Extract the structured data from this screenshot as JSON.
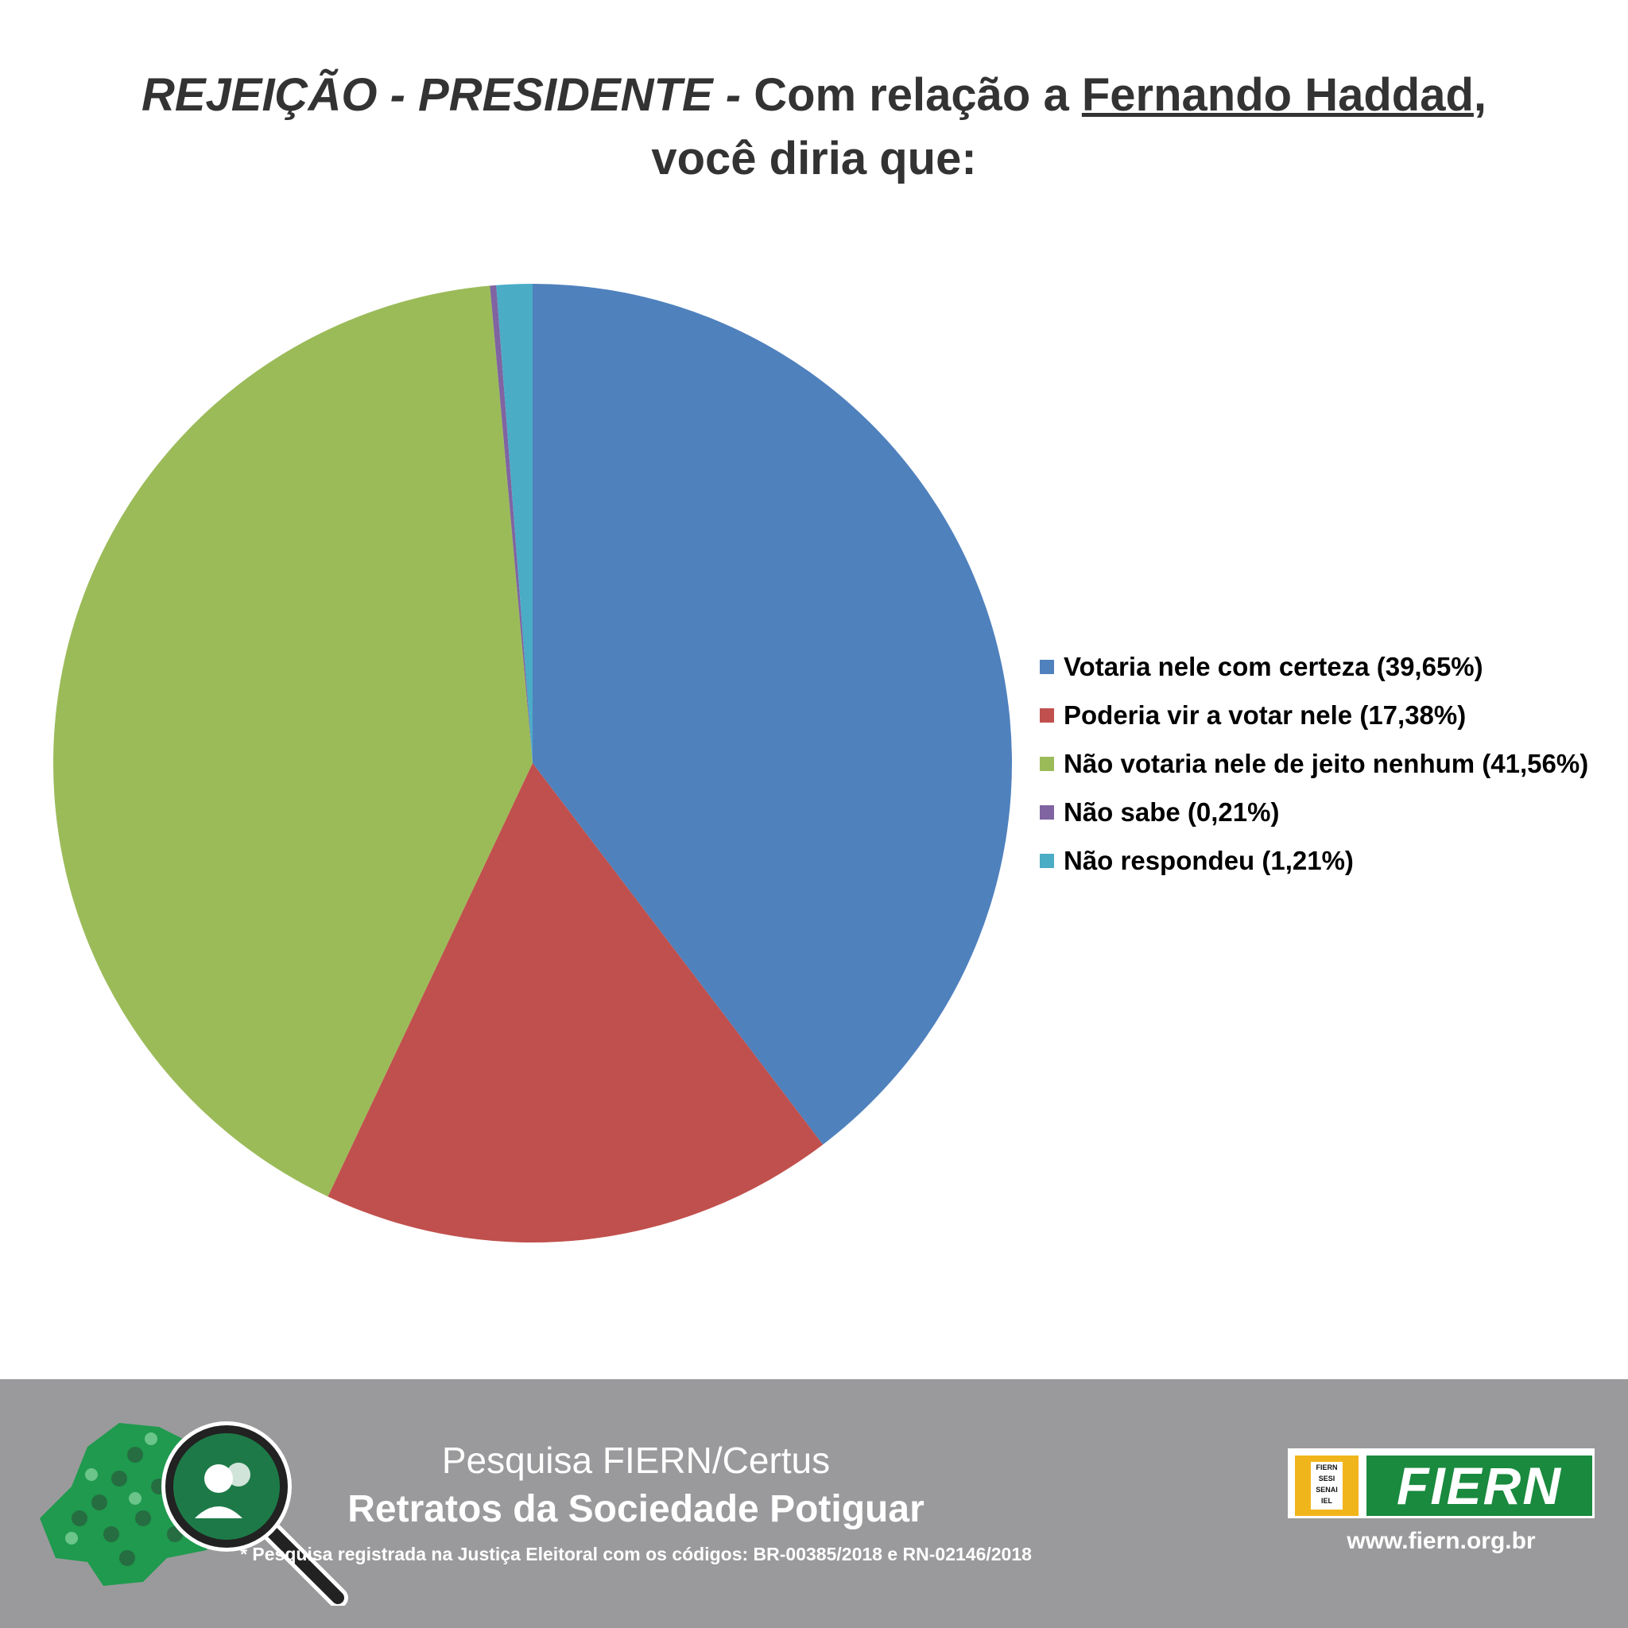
{
  "title": {
    "part1": "REJEIÇÃO - PRESIDENTE -",
    "part2": "Com relação a",
    "name": "Fernando Haddad",
    "comma": ",",
    "line2": "você diria que:"
  },
  "chart_data": {
    "type": "pie",
    "title": "REJEIÇÃO - PRESIDENTE - Com relação a Fernando Haddad, você diria que:",
    "start_angle_deg": 0,
    "direction": "clockwise",
    "legend_position": "right",
    "slices": [
      {
        "label": "Votaria nele com certeza (39,65%)",
        "value": 39.65,
        "color": "#4f81bd"
      },
      {
        "label": "Poderia vir a votar nele (17,38%)",
        "value": 17.38,
        "color": "#c0504d"
      },
      {
        "label": "Não votaria nele de jeito nenhum (41,56%)",
        "value": 41.56,
        "color": "#9bbb59"
      },
      {
        "label": "Não sabe (0,21%)",
        "value": 0.21,
        "color": "#8064a2"
      },
      {
        "label": "Não respondeu (1,21%)",
        "value": 1.21,
        "color": "#4bacc6"
      }
    ]
  },
  "footer": {
    "subtitle": "Pesquisa FIERN/Certus",
    "main": "Retratos da Sociedade Potiguar",
    "note": "* Pesquisa registrada na Justiça Eleitoral com os códigos: BR-00385/2018 e RN-02146/2018",
    "logo_text": "FIERN",
    "logo_small": [
      "FIERN",
      "SESI",
      "SENAI",
      "IEL"
    ],
    "url": "www.fiern.org.br"
  }
}
